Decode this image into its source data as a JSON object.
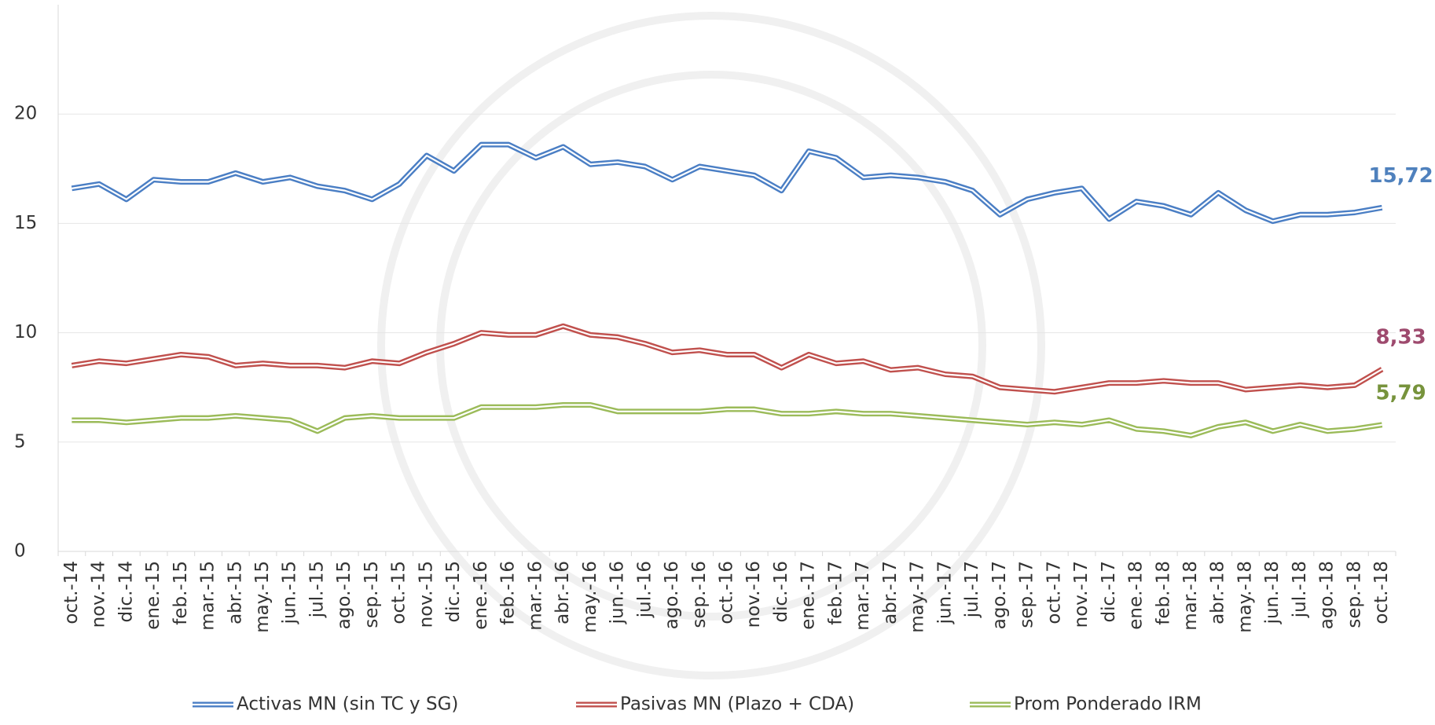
{
  "chart_data": {
    "type": "line",
    "categories": [
      "oct.-14",
      "nov.-14",
      "dic.-14",
      "ene.-15",
      "feb.-15",
      "mar.-15",
      "abr.-15",
      "may.-15",
      "jun.-15",
      "jul.-15",
      "ago.-15",
      "sep.-15",
      "oct.-15",
      "nov.-15",
      "dic.-15",
      "ene.-16",
      "feb.-16",
      "mar.-16",
      "abr.-16",
      "may.-16",
      "jun.-16",
      "jul.-16",
      "ago.-16",
      "sep.-16",
      "oct.-16",
      "nov.-16",
      "dic.-16",
      "ene.-17",
      "feb.-17",
      "mar.-17",
      "abr.-17",
      "may.-17",
      "jun.-17",
      "jul.-17",
      "ago.-17",
      "sep.-17",
      "oct.-17",
      "nov.-17",
      "dic.-17",
      "ene.-18",
      "feb.-18",
      "mar.-18",
      "abr.-18",
      "may.-18",
      "jun.-18",
      "jul.-18",
      "ago.-18",
      "sep.-18",
      "oct.-18"
    ],
    "series": [
      {
        "name": "Activas MN (sin TC y SG)",
        "color": "#4a7ec4",
        "label_color": "#4f81bd",
        "values": [
          16.6,
          16.8,
          16.1,
          17.0,
          16.9,
          16.9,
          17.3,
          16.9,
          17.1,
          16.7,
          16.5,
          16.1,
          16.8,
          18.1,
          17.4,
          18.6,
          18.6,
          18.0,
          18.5,
          17.7,
          17.8,
          17.6,
          17.0,
          17.6,
          17.4,
          17.2,
          16.5,
          18.3,
          18.0,
          17.1,
          17.2,
          17.1,
          16.9,
          16.5,
          15.4,
          16.1,
          16.4,
          16.6,
          15.2,
          16.0,
          15.8,
          15.4,
          16.4,
          15.6,
          15.1,
          15.4,
          15.4,
          15.5,
          15.72
        ],
        "value_labels": [
          null,
          null,
          null,
          null,
          null,
          null,
          null,
          null,
          null,
          null,
          null,
          null,
          null,
          null,
          null,
          null,
          null,
          null,
          null,
          null,
          null,
          null,
          null,
          null,
          null,
          null,
          null,
          null,
          null,
          null,
          null,
          null,
          null,
          null,
          null,
          null,
          null,
          null,
          null,
          null,
          null,
          null,
          null,
          null,
          null,
          null,
          null,
          null,
          "15,72"
        ]
      },
      {
        "name": "Pasivas MN (Plazo + CDA)",
        "color": "#c0504d",
        "label_color": "#9e4a6e",
        "values": [
          8.5,
          8.7,
          8.6,
          8.8,
          9.0,
          8.9,
          8.5,
          8.6,
          8.5,
          8.5,
          8.4,
          8.7,
          8.6,
          9.1,
          9.5,
          10.0,
          9.9,
          9.9,
          10.3,
          9.9,
          9.8,
          9.5,
          9.1,
          9.2,
          9.0,
          9.0,
          8.4,
          9.0,
          8.6,
          8.7,
          8.3,
          8.4,
          8.1,
          8.0,
          7.5,
          7.4,
          7.3,
          7.5,
          7.7,
          7.7,
          7.8,
          7.7,
          7.7,
          7.4,
          7.5,
          7.6,
          7.5,
          7.6,
          8.33
        ],
        "value_labels": [
          null,
          null,
          null,
          null,
          null,
          null,
          null,
          null,
          null,
          null,
          null,
          null,
          null,
          null,
          null,
          null,
          null,
          null,
          null,
          null,
          null,
          null,
          null,
          null,
          null,
          null,
          null,
          null,
          null,
          null,
          null,
          null,
          null,
          null,
          null,
          null,
          null,
          null,
          null,
          null,
          null,
          null,
          null,
          null,
          null,
          null,
          null,
          null,
          "8,33"
        ]
      },
      {
        "name": "Prom Ponderado IRM",
        "color": "#9bbb59",
        "label_color": "#77933c",
        "values": [
          6.0,
          6.0,
          5.9,
          6.0,
          6.1,
          6.1,
          6.2,
          6.1,
          6.0,
          5.5,
          6.1,
          6.2,
          6.1,
          6.1,
          6.1,
          6.6,
          6.6,
          6.6,
          6.7,
          6.7,
          6.4,
          6.4,
          6.4,
          6.4,
          6.5,
          6.5,
          6.3,
          6.3,
          6.4,
          6.3,
          6.3,
          6.2,
          6.1,
          6.0,
          5.9,
          5.8,
          5.9,
          5.8,
          6.0,
          5.6,
          5.5,
          5.3,
          5.7,
          5.9,
          5.5,
          5.8,
          5.5,
          5.6,
          5.79
        ],
        "value_labels": [
          null,
          null,
          null,
          null,
          null,
          null,
          null,
          null,
          null,
          null,
          null,
          null,
          null,
          null,
          null,
          null,
          null,
          null,
          null,
          null,
          null,
          null,
          null,
          null,
          null,
          null,
          null,
          null,
          null,
          null,
          null,
          null,
          null,
          null,
          null,
          null,
          null,
          null,
          null,
          null,
          null,
          null,
          null,
          null,
          null,
          null,
          null,
          null,
          "5,79"
        ]
      }
    ],
    "ylim": [
      0,
      25
    ],
    "yticks": [
      0,
      5,
      10,
      15,
      20
    ],
    "grid": true,
    "legend": "bottom"
  }
}
